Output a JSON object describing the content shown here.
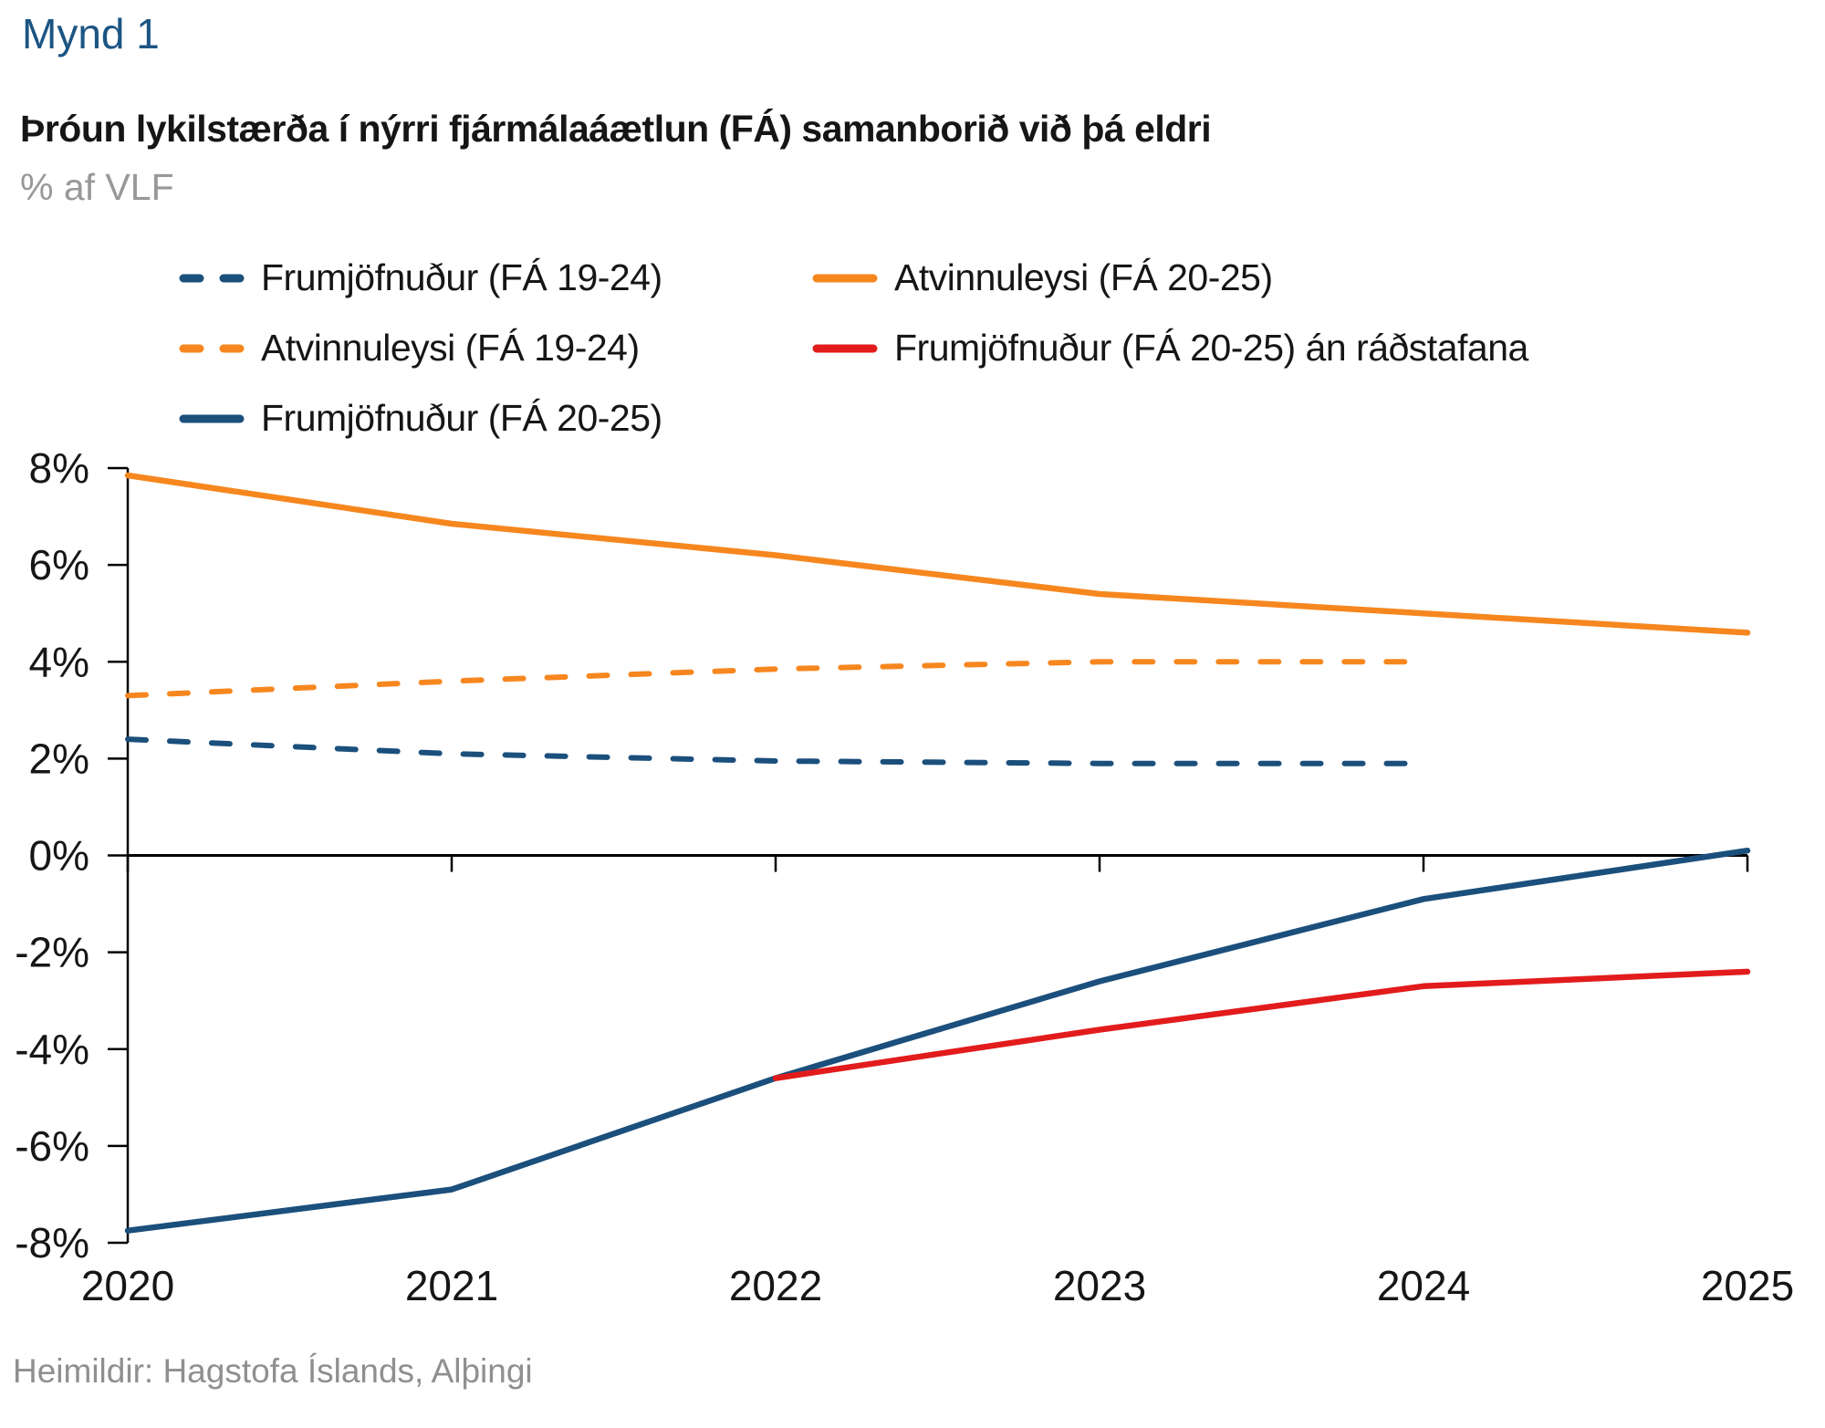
{
  "header": {
    "figure_label": "Mynd 1",
    "title": "Þróun lykilstærða í nýrri fjármálaáætlun (FÁ) samanborið við þá eldri",
    "subtitle": "% af VLF"
  },
  "footer": {
    "source": "Heimildir: Hagstofa Íslands, Alþingi"
  },
  "colors": {
    "blue": "#1b4f7c",
    "orange": "#f6871f",
    "red": "#e21c1c",
    "axis": "#000000",
    "figure_label_blue": "#1b5583",
    "subtitle_gray": "#98989a"
  },
  "chart_data": {
    "type": "line",
    "title": "Þróun lykilstærða í nýrri fjármálaáætlun (FÁ) samanborið við þá eldri",
    "subtitle_unit": "% af VLF",
    "x": [
      2020,
      2021,
      2022,
      2023,
      2024,
      2025
    ],
    "x_tick_labels": [
      "2020",
      "2021",
      "2022",
      "2023",
      "2024",
      "2025"
    ],
    "y_ticks": [
      8,
      6,
      4,
      2,
      0,
      -2,
      -4,
      -6,
      -8
    ],
    "y_tick_labels": [
      "8%",
      "6%",
      "4%",
      "2%",
      "0%",
      "-2%",
      "-4%",
      "-6%",
      "-8%"
    ],
    "ylim": [
      -8,
      8
    ],
    "xlabel": "",
    "ylabel": "% af VLF",
    "grid": false,
    "legend_position": "top-left-two-columns",
    "series": [
      {
        "name": "Frumjöfnuður (FÁ 19-24)",
        "color": "#1b4f7c",
        "dashed": true,
        "z": 1,
        "values": [
          2.4,
          2.1,
          1.95,
          1.9,
          1.9,
          null
        ]
      },
      {
        "name": "Atvinnuleysi (FÁ 20-25)",
        "color": "#f6871f",
        "dashed": false,
        "z": 2,
        "values": [
          7.85,
          6.85,
          6.2,
          5.4,
          5.0,
          4.6
        ]
      },
      {
        "name": "Atvinnuleysi (FÁ 19-24)",
        "color": "#f6871f",
        "dashed": true,
        "z": 1,
        "values": [
          3.3,
          3.6,
          3.85,
          4.0,
          4.0,
          null
        ]
      },
      {
        "name": "Frumjöfnuður (FÁ 20-25) án ráðstafana",
        "color": "#e21c1c",
        "dashed": false,
        "z": 4,
        "values": [
          null,
          null,
          -4.6,
          -3.6,
          -2.7,
          -2.4
        ]
      },
      {
        "name": "Frumjöfnuður (FÁ 20-25)",
        "color": "#1b4f7c",
        "dashed": false,
        "z": 3,
        "values": [
          -7.75,
          -6.9,
          -4.6,
          -2.6,
          -0.9,
          0.1
        ]
      }
    ]
  }
}
